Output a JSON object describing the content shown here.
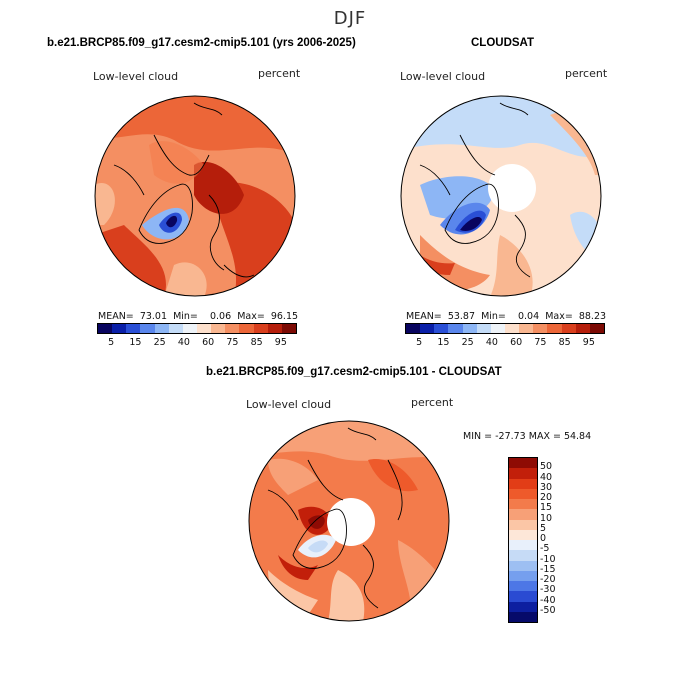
{
  "figure": {
    "season": "DJF",
    "panels": [
      {
        "title": "b.e21.BRCP85.f09_g17.cesm2-cmip5.101 (yrs 2006-2025)",
        "variable": "Low-level cloud",
        "units": "percent",
        "stats": {
          "mean_label": "MEAN=",
          "mean": "73.01",
          "min_label": "Min=",
          "min": "0.06",
          "max_label": "Max=",
          "max": "96.15"
        },
        "colorbar_ticks": [
          "5",
          "15",
          "25",
          "40",
          "60",
          "75",
          "85",
          "95"
        ]
      },
      {
        "title": "CLOUDSAT",
        "variable": "Low-level cloud",
        "units": "percent",
        "stats": {
          "mean_label": "MEAN=",
          "mean": "53.87",
          "min_label": "Min=",
          "min": "0.04",
          "max_label": "Max=",
          "max": "88.23"
        },
        "colorbar_ticks": [
          "5",
          "15",
          "25",
          "40",
          "60",
          "75",
          "85",
          "95"
        ]
      },
      {
        "title": "b.e21.BRCP85.f09_g17.cesm2-cmip5.101 - CLOUDSAT",
        "variable": "Low-level cloud",
        "units": "percent",
        "minmax": "MIN = -27.73 MAX =  54.84",
        "colorbar_ticks": [
          "50",
          "40",
          "30",
          "20",
          "15",
          "10",
          "5",
          "0",
          "-5",
          "-10",
          "-15",
          "-20",
          "-30",
          "-40",
          "-50"
        ]
      }
    ]
  },
  "colors": {
    "abs_scale": [
      "#08045f",
      "#0a1fa8",
      "#2a4fd6",
      "#5a86ec",
      "#8db6f5",
      "#c4dcf8",
      "#eef3f8",
      "#fde0cc",
      "#f9b791",
      "#f48f62",
      "#ec6638",
      "#d93f1d",
      "#b51e0b",
      "#7c0a04"
    ],
    "diff_scale": [
      "#8e0b04",
      "#c21f0a",
      "#e23d17",
      "#ee5a2b",
      "#f37b4b",
      "#f7a077",
      "#fbc6a6",
      "#fde7d8",
      "#e8f0fb",
      "#c6dbf6",
      "#9dbff2",
      "#759fee",
      "#4d77e6",
      "#2a4bd2",
      "#0d1fa0",
      "#060a6a"
    ],
    "land_line": "#000000"
  }
}
